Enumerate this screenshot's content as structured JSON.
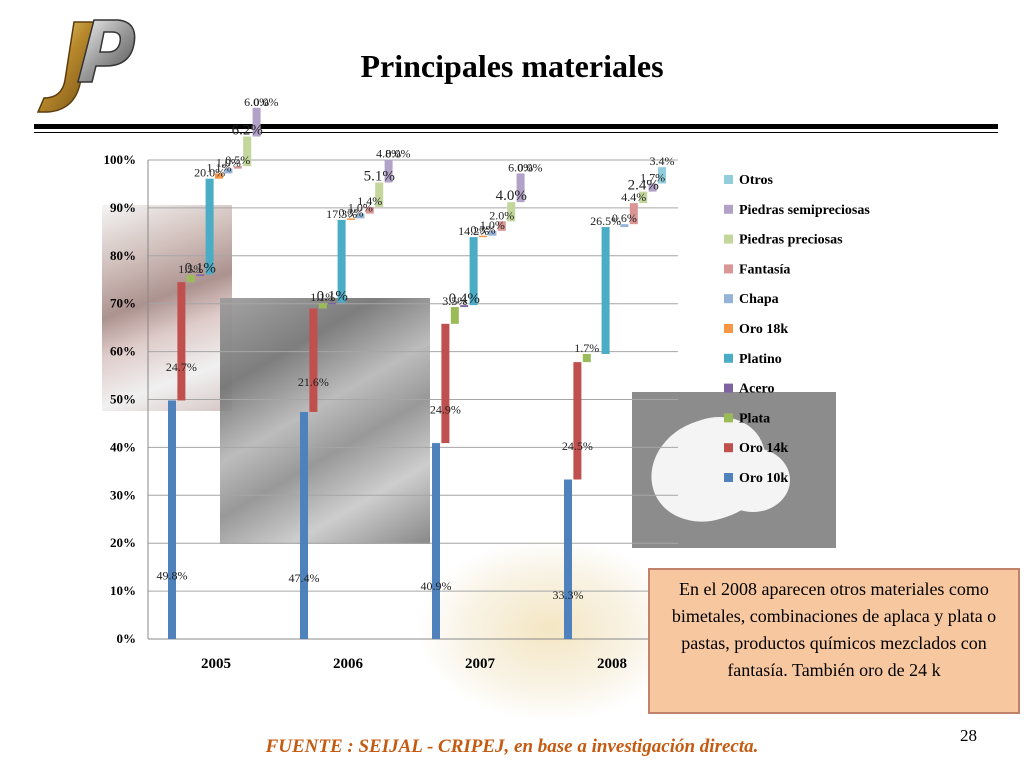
{
  "title": "Principales materiales",
  "logo_text": "JP",
  "note": "En el 2008 aparecen otros materiales como bimetales, combinaciones de aplaca y plata o pastas, productos químicos mezclados con fantasía. También oro de 24 k",
  "source": "FUENTE :  SEIJAL - CRIPEJ,  en base a investigación directa.",
  "page_number": "28",
  "chart_data": {
    "type": "bar",
    "title": "",
    "xlabel": "",
    "ylabel": "",
    "ylim": [
      0,
      100
    ],
    "y_ticks": [
      "0%",
      "10%",
      "20%",
      "30%",
      "40%",
      "50%",
      "60%",
      "70%",
      "80%",
      "90%",
      "100%"
    ],
    "categories": [
      "2005",
      "2006",
      "2007",
      "2008"
    ],
    "legend_position": "right",
    "series": [
      {
        "name": "Oro 10k",
        "color": "#4f81bd",
        "values": [
          49.8,
          47.4,
          40.9,
          33.3
        ],
        "labels": [
          "49.8%",
          "47.4%",
          "40.9%",
          "33.3%"
        ]
      },
      {
        "name": "Oro 14k",
        "color": "#c0504d",
        "values": [
          24.7,
          21.6,
          24.9,
          24.5
        ],
        "labels": [
          "24.7%",
          "21.6%",
          "24.9%",
          "24.5%"
        ]
      },
      {
        "name": "Plata",
        "color": "#9bbb59",
        "values": [
          1.5,
          1.1,
          3.5,
          1.7
        ],
        "labels": [
          "1.5%",
          "1.1%",
          "3.5%",
          "1.7%"
        ]
      },
      {
        "name": "Acero",
        "color": "#8064a2",
        "values": [
          0.1,
          0.1,
          0.4,
          0.0
        ],
        "labels": [
          "0.1%",
          "0.1%",
          "0.4%",
          ""
        ]
      },
      {
        "name": "Platino",
        "color": "#4bacc6",
        "values": [
          20.0,
          17.3,
          14.2,
          26.5
        ],
        "labels": [
          "20.0%",
          "17.3%",
          "14.2%",
          "26.5%"
        ]
      },
      {
        "name": "Oro 18k",
        "color": "#f79646",
        "values": [
          1.1,
          0.3,
          0.3,
          0.0
        ],
        "labels": [
          "1.1%",
          "0.3%",
          "0.3%",
          ""
        ]
      },
      {
        "name": "Chapa",
        "color": "#95b3d7",
        "values": [
          1.0,
          1.0,
          1.0,
          0.6
        ],
        "labels": [
          "1.0%",
          "1.0%",
          "1.0%",
          "0.6%"
        ]
      },
      {
        "name": "Fantasía",
        "color": "#d99694",
        "values": [
          0.5,
          1.4,
          2.0,
          4.4
        ],
        "labels": [
          "0.5%",
          "1.4%",
          "2.0%",
          "4.4%"
        ]
      },
      {
        "name": "Piedras preciosas",
        "color": "#c3d69b",
        "values": [
          6.2,
          5.1,
          4.0,
          2.4
        ],
        "labels": [
          "6.2%",
          "5.1%",
          "4.0%",
          "2.4%"
        ]
      },
      {
        "name": "Piedras semipreciosas",
        "color": "#b3a2c7",
        "values": [
          6.0,
          4.8,
          6.0,
          1.7
        ],
        "labels": [
          "6.0%",
          "4.8%",
          "6.0%",
          "1.7%"
        ]
      },
      {
        "name": "Otros",
        "color": "#92cddc",
        "values": [
          0.0,
          0.0,
          0.0,
          3.4
        ],
        "labels": [
          "0.0%",
          "0.0%",
          "0.0%",
          "3.4%"
        ]
      }
    ],
    "legend_order": [
      "Otros",
      "Piedras semipreciosas",
      "Piedras preciosas",
      "Fantasía",
      "Chapa",
      "Oro 18k",
      "Platino",
      "Acero",
      "Plata",
      "Oro 14k",
      "Oro 10k"
    ]
  }
}
